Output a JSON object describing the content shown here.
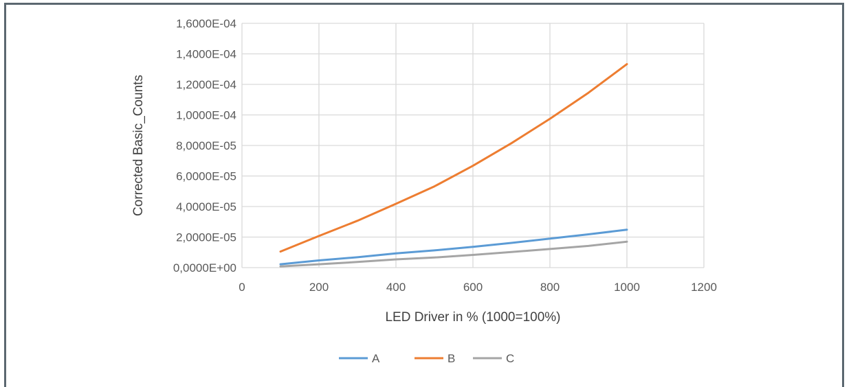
{
  "chart_data": {
    "type": "line",
    "title": "",
    "xlabel": "LED Driver in %  (1000=100%)",
    "ylabel": "Corrected Basic_Counts",
    "xlim": [
      0,
      1200
    ],
    "ylim": [
      0,
      0.00016
    ],
    "x_ticks": [
      0,
      200,
      400,
      600,
      800,
      1000,
      1200
    ],
    "x_tick_labels": [
      "0",
      "200",
      "400",
      "600",
      "800",
      "1000",
      "1200"
    ],
    "y_ticks": [
      0,
      2e-05,
      4e-05,
      6e-05,
      8e-05,
      0.0001,
      0.00012,
      0.00014,
      0.00016
    ],
    "y_tick_labels": [
      "0,0000E+00",
      "2,0000E-05",
      "4,0000E-05",
      "6,0000E-05",
      "8,0000E-05",
      "1,0000E-04",
      "1,2000E-04",
      "1,4000E-04",
      "1,6000E-04"
    ],
    "grid": true,
    "legend_position": "bottom",
    "x": [
      100,
      200,
      300,
      400,
      500,
      600,
      700,
      800,
      900,
      1000
    ],
    "series": [
      {
        "name": "A",
        "color": "#5b9bd5",
        "values": [
          2.2e-06,
          4.7e-06,
          6.8e-06,
          9.3e-06,
          1.13e-05,
          1.36e-05,
          1.62e-05,
          1.9e-05,
          2.18e-05,
          2.48e-05
        ]
      },
      {
        "name": "B",
        "color": "#ed7d31",
        "values": [
          1.05e-05,
          2.07e-05,
          3.07e-05,
          4.18e-05,
          5.32e-05,
          6.67e-05,
          8.15e-05,
          9.75e-05,
          0.0001145,
          0.0001333
        ]
      },
      {
        "name": "C",
        "color": "#a5a5a5",
        "values": [
          8e-07,
          2.2e-06,
          3.7e-06,
          5.4e-06,
          6.6e-06,
          8.3e-06,
          1.02e-05,
          1.22e-05,
          1.42e-05,
          1.7e-05
        ]
      }
    ]
  }
}
